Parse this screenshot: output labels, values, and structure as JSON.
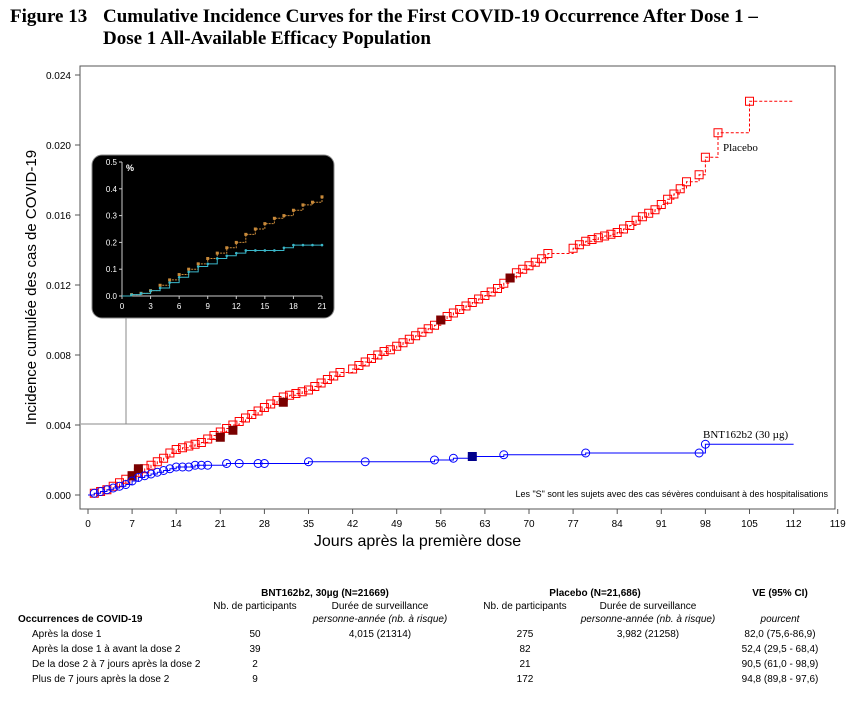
{
  "figure": {
    "number": "Figure 13",
    "title_line1": "Cumulative Incidence Curves for the First COVID-19 Occurrence After Dose 1 –",
    "title_line2": "Dose 1 All-Available Efficacy Population"
  },
  "chart_data": {
    "type": "line",
    "xlabel": "Jours après la première dose",
    "ylabel": "Incidence cumulée des cas de COVID-19",
    "xlim": [
      0,
      119
    ],
    "ylim": [
      0,
      0.024
    ],
    "x_ticks": [
      0,
      7,
      14,
      21,
      28,
      35,
      42,
      49,
      56,
      63,
      70,
      77,
      84,
      91,
      98,
      105,
      112,
      119
    ],
    "y_ticks": [
      "0.000",
      "0.004",
      "0.008",
      "0.012",
      "0.016",
      "0.020",
      "0.024"
    ],
    "footnote": "Les \"S\" sont les sujets avec des cas sévères conduisant à des hospitalisations",
    "series": [
      {
        "name": "Placebo",
        "color": "#ff0000",
        "marker": "square",
        "line_style": "dashed",
        "points": [
          [
            1,
            0.0001
          ],
          [
            2,
            0.0002
          ],
          [
            3,
            0.0003
          ],
          [
            4,
            0.0005
          ],
          [
            5,
            0.0007
          ],
          [
            6,
            0.0009
          ],
          [
            7,
            0.0011
          ],
          [
            8,
            0.0013
          ],
          [
            9,
            0.0015
          ],
          [
            10,
            0.0017
          ],
          [
            11,
            0.0019
          ],
          [
            12,
            0.0021
          ],
          [
            13,
            0.0024
          ],
          [
            14,
            0.0026
          ],
          [
            15,
            0.0027
          ],
          [
            16,
            0.0028
          ],
          [
            17,
            0.0029
          ],
          [
            18,
            0.003
          ],
          [
            19,
            0.0032
          ],
          [
            20,
            0.0034
          ],
          [
            21,
            0.0036
          ],
          [
            22,
            0.0038
          ],
          [
            23,
            0.004
          ],
          [
            24,
            0.0042
          ],
          [
            25,
            0.0044
          ],
          [
            26,
            0.0046
          ],
          [
            27,
            0.0048
          ],
          [
            28,
            0.005
          ],
          [
            29,
            0.0052
          ],
          [
            30,
            0.0054
          ],
          [
            31,
            0.0056
          ],
          [
            32,
            0.0057
          ],
          [
            33,
            0.0058
          ],
          [
            34,
            0.0059
          ],
          [
            35,
            0.006
          ],
          [
            36,
            0.0062
          ],
          [
            37,
            0.0064
          ],
          [
            38,
            0.0066
          ],
          [
            39,
            0.0068
          ],
          [
            40,
            0.007
          ],
          [
            42,
            0.0072
          ],
          [
            43,
            0.0074
          ],
          [
            44,
            0.0076
          ],
          [
            45,
            0.0078
          ],
          [
            46,
            0.008
          ],
          [
            47,
            0.0082
          ],
          [
            48,
            0.0083
          ],
          [
            49,
            0.0085
          ],
          [
            50,
            0.0087
          ],
          [
            51,
            0.0089
          ],
          [
            52,
            0.0091
          ],
          [
            53,
            0.0093
          ],
          [
            54,
            0.0095
          ],
          [
            55,
            0.0097
          ],
          [
            56,
            0.01
          ],
          [
            57,
            0.0102
          ],
          [
            58,
            0.0104
          ],
          [
            59,
            0.0106
          ],
          [
            60,
            0.0108
          ],
          [
            61,
            0.011
          ],
          [
            62,
            0.0112
          ],
          [
            63,
            0.0114
          ],
          [
            64,
            0.0116
          ],
          [
            65,
            0.0118
          ],
          [
            66,
            0.0121
          ],
          [
            67,
            0.0124
          ],
          [
            68,
            0.0127
          ],
          [
            69,
            0.0129
          ],
          [
            70,
            0.0131
          ],
          [
            71,
            0.0133
          ],
          [
            72,
            0.0135
          ],
          [
            73,
            0.0138
          ],
          [
            77,
            0.0141
          ],
          [
            78,
            0.0143
          ],
          [
            79,
            0.0145
          ],
          [
            80,
            0.0146
          ],
          [
            81,
            0.0147
          ],
          [
            82,
            0.0148
          ],
          [
            83,
            0.0149
          ],
          [
            84,
            0.015
          ],
          [
            85,
            0.0152
          ],
          [
            86,
            0.0154
          ],
          [
            87,
            0.0157
          ],
          [
            88,
            0.0159
          ],
          [
            89,
            0.0161
          ],
          [
            90,
            0.0163
          ],
          [
            91,
            0.0166
          ],
          [
            92,
            0.0169
          ],
          [
            93,
            0.0172
          ],
          [
            94,
            0.0175
          ],
          [
            95,
            0.0179
          ],
          [
            97,
            0.0183
          ],
          [
            98,
            0.0193
          ],
          [
            100,
            0.0207
          ],
          [
            105,
            0.0225
          ]
        ],
        "end": [
          112,
          0.0225
        ],
        "severe_points": [
          [
            7,
            0.0011
          ],
          [
            8,
            0.0015
          ],
          [
            21,
            0.0033
          ],
          [
            23,
            0.0037
          ],
          [
            31,
            0.0053
          ],
          [
            56,
            0.01
          ],
          [
            67,
            0.0124
          ]
        ]
      },
      {
        "name": "BNT162b2 (30 µg)",
        "color": "#0000ff",
        "marker": "circle",
        "line_style": "solid",
        "points": [
          [
            1,
            0.0001
          ],
          [
            2,
            0.0002
          ],
          [
            3,
            0.0003
          ],
          [
            4,
            0.0004
          ],
          [
            5,
            0.0005
          ],
          [
            6,
            0.0006
          ],
          [
            7,
            0.0008
          ],
          [
            8,
            0.001
          ],
          [
            9,
            0.0011
          ],
          [
            10,
            0.0012
          ],
          [
            11,
            0.0013
          ],
          [
            12,
            0.0014
          ],
          [
            13,
            0.0015
          ],
          [
            14,
            0.0016
          ],
          [
            15,
            0.0016
          ],
          [
            16,
            0.0016
          ],
          [
            17,
            0.0017
          ],
          [
            18,
            0.0017
          ],
          [
            19,
            0.0017
          ],
          [
            22,
            0.0018
          ],
          [
            24,
            0.0018
          ],
          [
            27,
            0.0018
          ],
          [
            28,
            0.0018
          ],
          [
            35,
            0.0019
          ],
          [
            44,
            0.0019
          ],
          [
            55,
            0.002
          ],
          [
            58,
            0.0021
          ],
          [
            61,
            0.0022
          ],
          [
            66,
            0.0023
          ],
          [
            79,
            0.0024
          ],
          [
            97,
            0.0024
          ],
          [
            98,
            0.0029
          ]
        ],
        "end": [
          112,
          0.0029
        ],
        "severe_points": [
          [
            61,
            0.0022
          ]
        ]
      }
    ],
    "inset": {
      "y_unit": "%",
      "x_ticks": [
        0,
        3,
        6,
        9,
        12,
        15,
        18,
        21
      ],
      "y_ticks": [
        "0.0",
        "0.1",
        "0.2",
        "0.3",
        "0.4",
        "0.5"
      ],
      "xlim": [
        0,
        21
      ],
      "ylim": [
        0,
        0.5
      ],
      "placebo": [
        [
          1,
          0.005
        ],
        [
          2,
          0.01
        ],
        [
          3,
          0.02
        ],
        [
          4,
          0.04
        ],
        [
          5,
          0.06
        ],
        [
          6,
          0.08
        ],
        [
          7,
          0.1
        ],
        [
          8,
          0.12
        ],
        [
          9,
          0.14
        ],
        [
          10,
          0.16
        ],
        [
          11,
          0.18
        ],
        [
          12,
          0.2
        ],
        [
          13,
          0.23
        ],
        [
          14,
          0.25
        ],
        [
          15,
          0.27
        ],
        [
          16,
          0.29
        ],
        [
          17,
          0.3
        ],
        [
          18,
          0.32
        ],
        [
          19,
          0.34
        ],
        [
          20,
          0.35
        ],
        [
          21,
          0.37
        ]
      ],
      "bnt": [
        [
          1,
          0.005
        ],
        [
          2,
          0.01
        ],
        [
          3,
          0.02
        ],
        [
          4,
          0.03
        ],
        [
          5,
          0.05
        ],
        [
          6,
          0.07
        ],
        [
          7,
          0.09
        ],
        [
          8,
          0.11
        ],
        [
          9,
          0.12
        ],
        [
          10,
          0.14
        ],
        [
          11,
          0.15
        ],
        [
          12,
          0.16
        ],
        [
          13,
          0.17
        ],
        [
          14,
          0.17
        ],
        [
          15,
          0.17
        ],
        [
          16,
          0.17
        ],
        [
          17,
          0.18
        ],
        [
          18,
          0.19
        ],
        [
          19,
          0.19
        ],
        [
          20,
          0.19
        ],
        [
          21,
          0.19
        ]
      ]
    }
  },
  "table": {
    "group1": "BNT162b2, 30µg (N=21669)",
    "group2": "Placebo (N=21,686)",
    "ve": "VE (95% CI)",
    "nb_participants": "Nb. de participants",
    "duree": "Durée de surveillance",
    "duree_sub": "personne-année (nb. à risque)",
    "pourcent": "pourcent",
    "row_header": "Occurrences de COVID-19",
    "rows": [
      {
        "label": "Après la dose 1",
        "n1": "50",
        "d1": "4,015 (21314)",
        "n2": "275",
        "d2": "3,982 (21258)",
        "ve": "82,0 (75,6-86,9)"
      },
      {
        "label": "Après la dose 1 à avant la dose 2",
        "n1": "39",
        "d1": "",
        "n2": "82",
        "d2": "",
        "ve": "52,4 (29,5 - 68,4)"
      },
      {
        "label": "De la dose 2 à 7 jours après la dose 2",
        "n1": "2",
        "d1": "",
        "n2": "21",
        "d2": "",
        "ve": "90,5 (61,0 - 98,9)"
      },
      {
        "label": "Plus de 7 jours après la dose 2",
        "n1": "9",
        "d1": "",
        "n2": "172",
        "d2": "",
        "ve": "94,8 (89,8 - 97,6)"
      }
    ]
  }
}
